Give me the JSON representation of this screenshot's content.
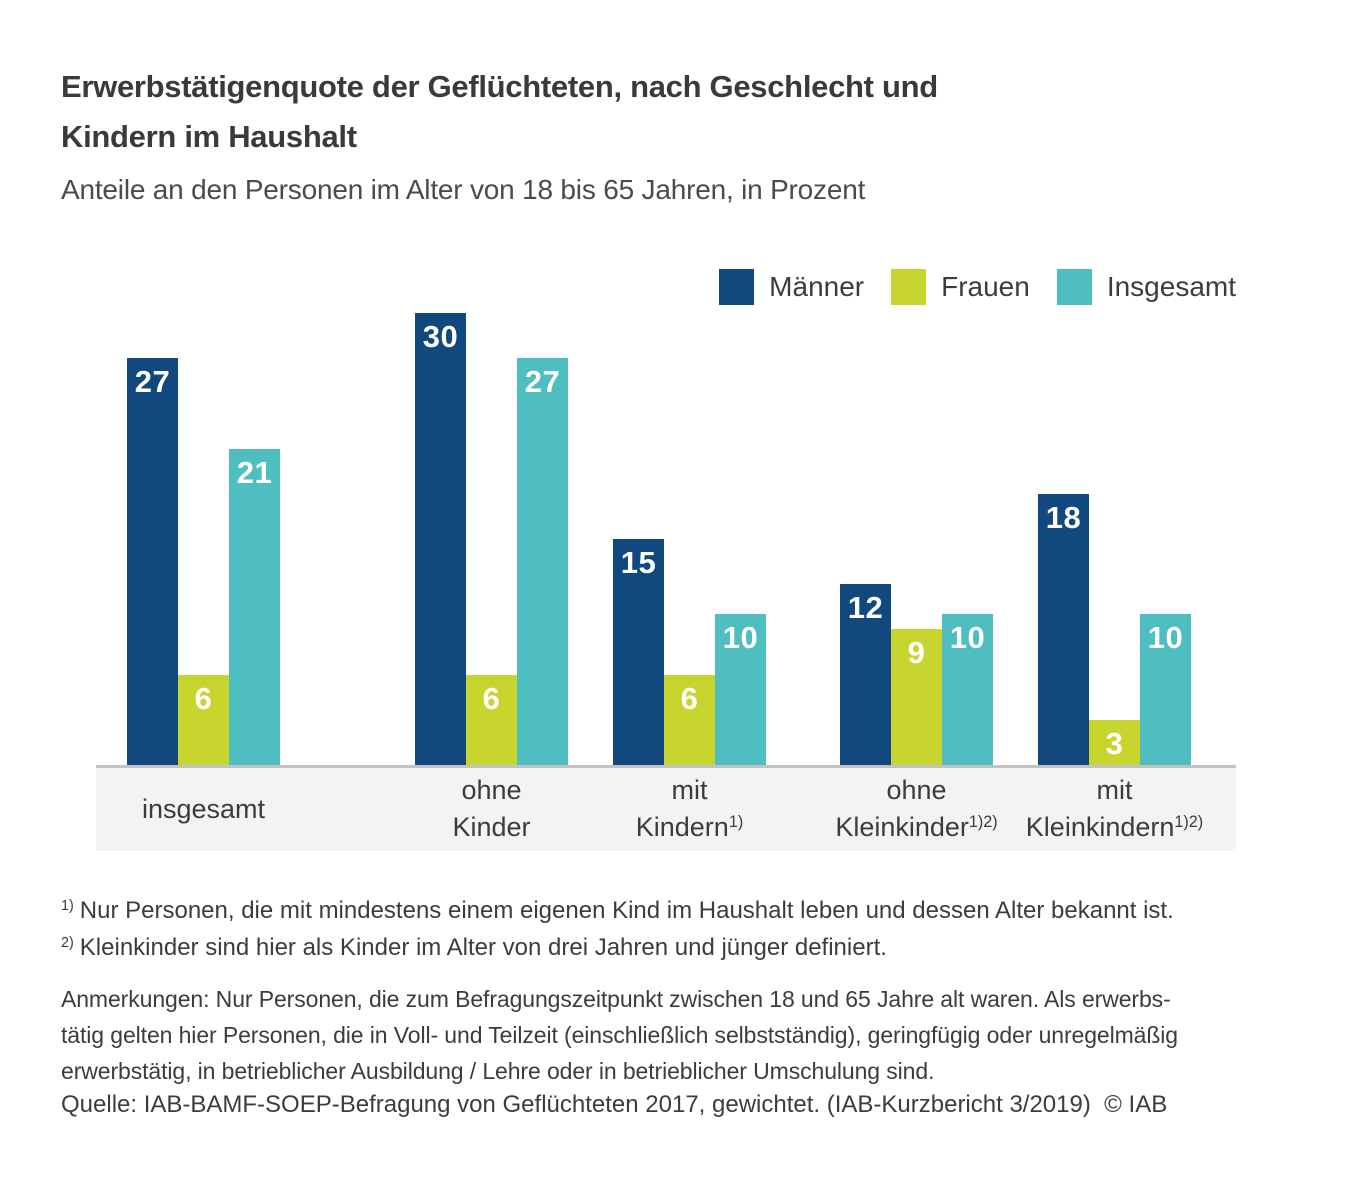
{
  "header": {
    "title_lines": [
      "Erwerbstätigenquote der Geflüchteten, nach Geschlecht und",
      "Kindern im Haushalt"
    ],
    "subtitle": "Anteile an den Personen im Alter von 18 bis 65 Jahren, in Prozent"
  },
  "chart_data": {
    "type": "bar",
    "title": "Erwerbstätigenquote der Geflüchteten, nach Geschlecht und Kindern im Haushalt",
    "subtitle": "Anteile an den Personen im Alter von 18 bis 65 Jahren, in Prozent",
    "unit": "Prozent",
    "ylim": [
      0,
      30
    ],
    "grid": false,
    "legend_position": "top-right",
    "value_label_position": "inside-top",
    "categories": [
      "insgesamt",
      "ohne Kinder",
      "mit Kindern¹⁾",
      "ohne Kleinkinder¹⁾²⁾",
      "mit Kleinkindern¹⁾²⁾"
    ],
    "category_labels": [
      {
        "line1": "insgesamt",
        "line2": "",
        "sup": ""
      },
      {
        "line1": "ohne",
        "line2": "Kinder",
        "sup": ""
      },
      {
        "line1": "mit",
        "line2": "Kindern",
        "sup": "1)"
      },
      {
        "line1": "ohne",
        "line2": "Kleinkinder",
        "sup": "1)2)"
      },
      {
        "line1": "mit",
        "line2": "Kleinkindern",
        "sup": "1)2)"
      }
    ],
    "series": [
      {
        "name": "Männer",
        "color": "#11487e",
        "values": [
          27,
          30,
          15,
          12,
          18
        ]
      },
      {
        "name": "Frauen",
        "color": "#c8d52f",
        "values": [
          6,
          6,
          6,
          9,
          3
        ]
      },
      {
        "name": "Insgesamt",
        "color": "#4fbec0",
        "values": [
          21,
          27,
          10,
          10,
          10
        ]
      }
    ]
  },
  "styles": {
    "band_bg": "#f3f3f2",
    "axis_line": "#c2c2c2",
    "value_label_color": "#ffffff",
    "title_color": "#3a3a39",
    "text_color": "#3c3c3b"
  },
  "footnotes": [
    {
      "marker": "1)",
      "text": "Nur Personen, die mit mindestens einem eigenen Kind im Haushalt leben und dessen Alter bekannt ist."
    },
    {
      "marker": "2)",
      "text": "Kleinkinder sind hier als Kinder im Alter von drei Jahren und jünger definiert."
    }
  ],
  "notes_lines": [
    "Anmerkungen: Nur Personen, die zum Befragungszeitpunkt zwischen 18 und 65 Jahre alt waren. Als erwerbs-",
    "tätig gelten hier Personen, die in Voll- und Teilzeit (einschließlich selbstständig), geringfügig oder unregelmäßig",
    "erwerbstätig, in betrieblicher Ausbildung / Lehre oder in betrieblicher Umschulung sind."
  ],
  "source": "Quelle: IAB-BAMF-SOEP-Befragung von Geflüchteten 2017, gewichtet. (IAB-Kurzbericht 3/2019)  © IAB"
}
